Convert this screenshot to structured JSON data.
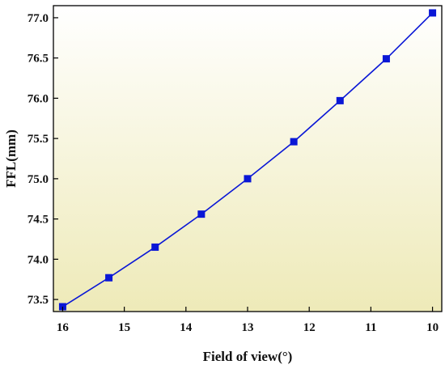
{
  "chart_data": {
    "type": "line",
    "title": "",
    "xlabel": "Field of view(°)",
    "ylabel": "FFL(mm)",
    "xlim": [
      16.15,
      9.85
    ],
    "ylim": [
      73.35,
      77.15
    ],
    "x_reversed": true,
    "grid": false,
    "x_ticks": [
      16,
      15,
      14,
      13,
      12,
      11,
      10
    ],
    "y_ticks": [
      73.5,
      74.0,
      74.5,
      75.0,
      75.5,
      76.0,
      76.5,
      77.0
    ],
    "y_tick_labels": [
      "73.5",
      "74.0",
      "74.5",
      "75.0",
      "75.5",
      "76.0",
      "76.5",
      "77.0"
    ],
    "series": [
      {
        "marker": "square",
        "color": "#0a17d6",
        "x": [
          16,
          15.25,
          14.5,
          13.75,
          13,
          12.25,
          11.5,
          10.75,
          10
        ],
        "y": [
          73.41,
          73.77,
          74.15,
          74.56,
          75.0,
          75.46,
          75.97,
          76.49,
          77.06
        ]
      }
    ],
    "background_gradient": [
      "#ffffff",
      "#eeeab8"
    ]
  }
}
